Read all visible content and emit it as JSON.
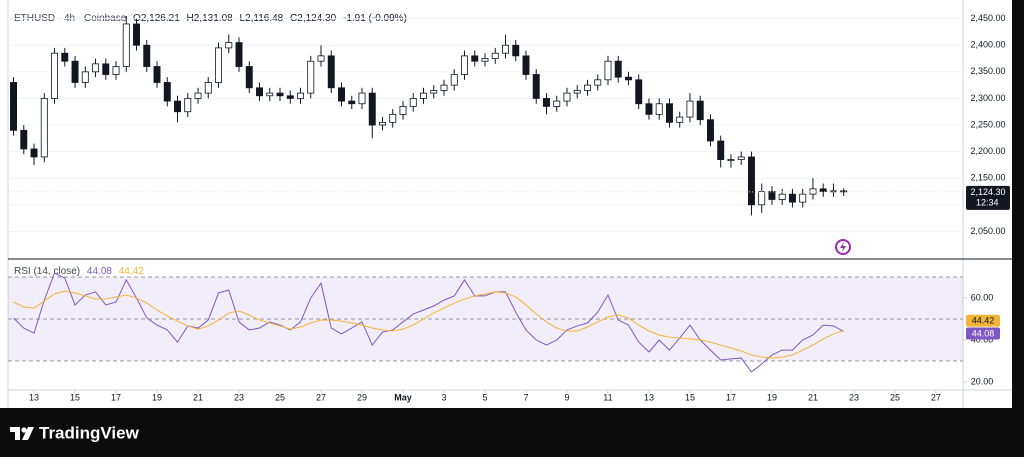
{
  "header": {
    "symbol": "ETHUSD · 4h · Coinbase",
    "ohlc": [
      {
        "label": "O",
        "value": "2,126.21"
      },
      {
        "label": "H",
        "value": "2,131.08"
      },
      {
        "label": "L",
        "value": "2,116.48"
      },
      {
        "label": "C",
        "value": "2,124.30"
      }
    ],
    "change": "-1.91 (-0.09%)"
  },
  "footer": {
    "brand": "TradingView"
  },
  "chart_data": [
    {
      "type": "candlestick",
      "up_color": "#ffffff",
      "down_color": "#131722",
      "wick_color": "#131722",
      "last_line_color": "#e9dfa6",
      "last_label": "2,124.30",
      "countdown": "12:34",
      "xlim": [
        -1.27,
        45.32
      ],
      "ylim": [
        2000,
        2470
      ],
      "yticks": [
        {
          "value": 2050,
          "label": "2,050.00"
        },
        {
          "value": 2100,
          "label": "2,100.00"
        },
        {
          "value": 2150,
          "label": "2,150.00"
        },
        {
          "value": 2200,
          "label": "2,200.00"
        },
        {
          "value": 2250,
          "label": "2,250.00"
        },
        {
          "value": 2300,
          "label": "2,300.00"
        },
        {
          "value": 2350,
          "label": "2,350.00"
        },
        {
          "value": 2400,
          "label": "2,400.00"
        },
        {
          "value": 2450,
          "label": "2,450.00"
        }
      ],
      "x": [
        -1,
        -0.5,
        0,
        0.5,
        1,
        1.5,
        2,
        2.5,
        3,
        3.5,
        4,
        4.5,
        5,
        5.5,
        6,
        6.5,
        7,
        7.5,
        8,
        8.5,
        9,
        9.5,
        10,
        10.5,
        11,
        11.5,
        12,
        12.5,
        13,
        13.5,
        14,
        14.5,
        15,
        15.5,
        16,
        16.5,
        17,
        17.5,
        18,
        18.5,
        19,
        19.5,
        20,
        20.5,
        21,
        21.5,
        22,
        22.5,
        23,
        23.5,
        24,
        24.5,
        25,
        25.5,
        26,
        26.5,
        27,
        27.5,
        28,
        28.5,
        29,
        29.5,
        30,
        30.5,
        31,
        31.5,
        32,
        32.5,
        33,
        33.5,
        34,
        34.5,
        35,
        35.5,
        36,
        36.5,
        37,
        37.5,
        38,
        38.5,
        39,
        39.5
      ],
      "open": [
        2330,
        2240,
        2205,
        2190,
        2300,
        2385,
        2370,
        2330,
        2350,
        2365,
        2345,
        2360,
        2440,
        2400,
        2360,
        2330,
        2295,
        2275,
        2300,
        2310,
        2330,
        2395,
        2405,
        2360,
        2320,
        2305,
        2310,
        2305,
        2300,
        2310,
        2370,
        2380,
        2320,
        2295,
        2290,
        2310,
        2250,
        2255,
        2270,
        2285,
        2300,
        2310,
        2315,
        2325,
        2345,
        2380,
        2370,
        2375,
        2385,
        2400,
        2380,
        2345,
        2300,
        2285,
        2295,
        2310,
        2315,
        2325,
        2335,
        2370,
        2340,
        2335,
        2290,
        2270,
        2290,
        2255,
        2265,
        2295,
        2260,
        2220,
        2185,
        2185,
        2190,
        2100,
        2125,
        2110,
        2120,
        2105,
        2120,
        2130,
        2125,
        2126.21
      ],
      "high": [
        2340,
        2250,
        2215,
        2310,
        2395,
        2395,
        2380,
        2360,
        2375,
        2375,
        2370,
        2455,
        2450,
        2410,
        2370,
        2340,
        2305,
        2310,
        2320,
        2340,
        2405,
        2420,
        2415,
        2370,
        2330,
        2320,
        2320,
        2315,
        2320,
        2380,
        2400,
        2390,
        2330,
        2305,
        2320,
        2320,
        2265,
        2280,
        2295,
        2310,
        2320,
        2325,
        2335,
        2355,
        2390,
        2390,
        2385,
        2395,
        2420,
        2410,
        2390,
        2355,
        2310,
        2305,
        2320,
        2325,
        2335,
        2345,
        2380,
        2380,
        2350,
        2345,
        2300,
        2300,
        2300,
        2275,
        2310,
        2305,
        2270,
        2230,
        2195,
        2200,
        2200,
        2140,
        2135,
        2130,
        2130,
        2130,
        2150,
        2140,
        2140,
        2131.08
      ],
      "low": [
        2230,
        2195,
        2175,
        2180,
        2290,
        2360,
        2320,
        2320,
        2340,
        2335,
        2335,
        2350,
        2390,
        2350,
        2320,
        2285,
        2255,
        2265,
        2290,
        2300,
        2320,
        2385,
        2350,
        2310,
        2295,
        2295,
        2295,
        2290,
        2290,
        2300,
        2360,
        2310,
        2285,
        2280,
        2280,
        2225,
        2240,
        2245,
        2260,
        2275,
        2290,
        2300,
        2305,
        2315,
        2335,
        2360,
        2360,
        2365,
        2375,
        2370,
        2335,
        2290,
        2270,
        2275,
        2285,
        2300,
        2305,
        2315,
        2325,
        2330,
        2325,
        2280,
        2260,
        2260,
        2245,
        2245,
        2255,
        2250,
        2210,
        2170,
        2170,
        2175,
        2080,
        2085,
        2100,
        2100,
        2095,
        2095,
        2110,
        2115,
        2115,
        2116.48
      ],
      "close": [
        2240,
        2205,
        2190,
        2300,
        2385,
        2370,
        2330,
        2350,
        2365,
        2345,
        2360,
        2440,
        2400,
        2360,
        2330,
        2295,
        2275,
        2300,
        2310,
        2330,
        2395,
        2405,
        2360,
        2320,
        2305,
        2310,
        2305,
        2300,
        2310,
        2370,
        2380,
        2320,
        2295,
        2290,
        2310,
        2250,
        2255,
        2270,
        2285,
        2300,
        2310,
        2315,
        2325,
        2345,
        2380,
        2370,
        2375,
        2385,
        2400,
        2380,
        2345,
        2300,
        2285,
        2295,
        2310,
        2315,
        2325,
        2335,
        2370,
        2340,
        2335,
        2290,
        2270,
        2290,
        2255,
        2265,
        2295,
        2260,
        2220,
        2185,
        2185,
        2190,
        2100,
        2125,
        2110,
        2120,
        2105,
        2120,
        2130,
        2125,
        2126.21,
        2124.3
      ]
    },
    {
      "type": "line",
      "title": "RSI (14, close)",
      "band_fill": "#7e57c2",
      "levels": [
        70,
        50,
        30
      ],
      "xlim": [
        -1.27,
        45.32
      ],
      "ylim": [
        16.2,
        78.1
      ],
      "yticks": [
        {
          "value": 20,
          "label": "20.00"
        },
        {
          "value": 40,
          "label": "40.00"
        },
        {
          "value": 60,
          "label": "60.00"
        }
      ],
      "xticks": [
        {
          "value": 0,
          "label": "13"
        },
        {
          "value": 2,
          "label": "15"
        },
        {
          "value": 4,
          "label": "17"
        },
        {
          "value": 6,
          "label": "19"
        },
        {
          "value": 8,
          "label": "21"
        },
        {
          "value": 10,
          "label": "23"
        },
        {
          "value": 12,
          "label": "25"
        },
        {
          "value": 14,
          "label": "27"
        },
        {
          "value": 16,
          "label": "29"
        },
        {
          "value": 18,
          "label": "May"
        },
        {
          "value": 20,
          "label": "3"
        },
        {
          "value": 22,
          "label": "5"
        },
        {
          "value": 24,
          "label": "7"
        },
        {
          "value": 26,
          "label": "9"
        },
        {
          "value": 28,
          "label": "11"
        },
        {
          "value": 30,
          "label": "13"
        },
        {
          "value": 32,
          "label": "15"
        },
        {
          "value": 34,
          "label": "17"
        },
        {
          "value": 36,
          "label": "19"
        },
        {
          "value": 38,
          "label": "21"
        },
        {
          "value": 40,
          "label": "23"
        },
        {
          "value": 42,
          "label": "25"
        },
        {
          "value": 44,
          "label": "27"
        }
      ],
      "x": [
        -1,
        -0.5,
        0,
        0.5,
        1,
        1.5,
        2,
        2.5,
        3,
        3.5,
        4,
        4.5,
        5,
        5.5,
        6,
        6.5,
        7,
        7.5,
        8,
        8.5,
        9,
        9.5,
        10,
        10.5,
        11,
        11.5,
        12,
        12.5,
        13,
        13.5,
        14,
        14.5,
        15,
        15.5,
        16,
        16.5,
        17,
        17.5,
        18,
        18.5,
        19,
        19.5,
        20,
        20.5,
        21,
        21.5,
        22,
        22.5,
        23,
        23.5,
        24,
        24.5,
        25,
        25.5,
        26,
        26.5,
        27,
        27.5,
        28,
        28.5,
        29,
        29.5,
        30,
        30.5,
        31,
        31.5,
        32,
        32.5,
        33,
        33.5,
        34,
        34.5,
        35,
        35.5,
        36,
        36.5,
        37,
        37.5,
        38,
        38.5,
        39,
        39.5
      ],
      "series": [
        {
          "color": "#7e57c2",
          "values": [
            50.5,
            45.7,
            43.3,
            59,
            71.9,
            69.5,
            56.7,
            61.4,
            62.9,
            56.7,
            58.1,
            68.6,
            60,
            50.5,
            47.1,
            44.8,
            39,
            46.7,
            45.7,
            49.5,
            62.4,
            63.8,
            48.6,
            44.8,
            45.7,
            48.6,
            47.1,
            44.8,
            48.6,
            60,
            67.1,
            45.7,
            42.9,
            45.7,
            48.6,
            37.6,
            43.8,
            44.8,
            48.6,
            52.4,
            54.3,
            56.2,
            59,
            61,
            68.6,
            61,
            61,
            62.9,
            62.9,
            53.3,
            44.8,
            40,
            37.6,
            40,
            44.8,
            46.7,
            48.1,
            53.3,
            61.4,
            49.5,
            47.1,
            39,
            34.3,
            40,
            35.2,
            41,
            47.1,
            40,
            35.2,
            30.5,
            31,
            31.4,
            24.8,
            28.6,
            32.9,
            35.2,
            35.2,
            40,
            42.4,
            47.1,
            46.7,
            44.08
          ]
        },
        {
          "color": "#f2b53a",
          "values": [
            58.1,
            55.7,
            55.2,
            58.6,
            61.9,
            63.3,
            62.4,
            61,
            59.5,
            59.5,
            60.5,
            61.4,
            60,
            57.6,
            54.3,
            51.4,
            49,
            46.7,
            45.2,
            46.7,
            49.5,
            52.9,
            53.8,
            51.9,
            49.5,
            48.1,
            46.7,
            45.2,
            46.2,
            48.1,
            49.5,
            49.5,
            49,
            48.1,
            47.1,
            45.7,
            44.8,
            44.3,
            45.2,
            47.1,
            50,
            52.9,
            55.2,
            57.6,
            59.5,
            61,
            61.9,
            62.9,
            62.4,
            60.5,
            56.7,
            52.4,
            48.6,
            45.7,
            44.3,
            44.3,
            46.2,
            48.6,
            51,
            51.9,
            50.5,
            47.1,
            44.3,
            42.4,
            41.4,
            41,
            40.5,
            40,
            39,
            37.6,
            36.2,
            34.8,
            32.9,
            31.9,
            31.4,
            31.9,
            32.9,
            35.2,
            37.6,
            40.5,
            42.9,
            44.42
          ]
        }
      ]
    }
  ]
}
